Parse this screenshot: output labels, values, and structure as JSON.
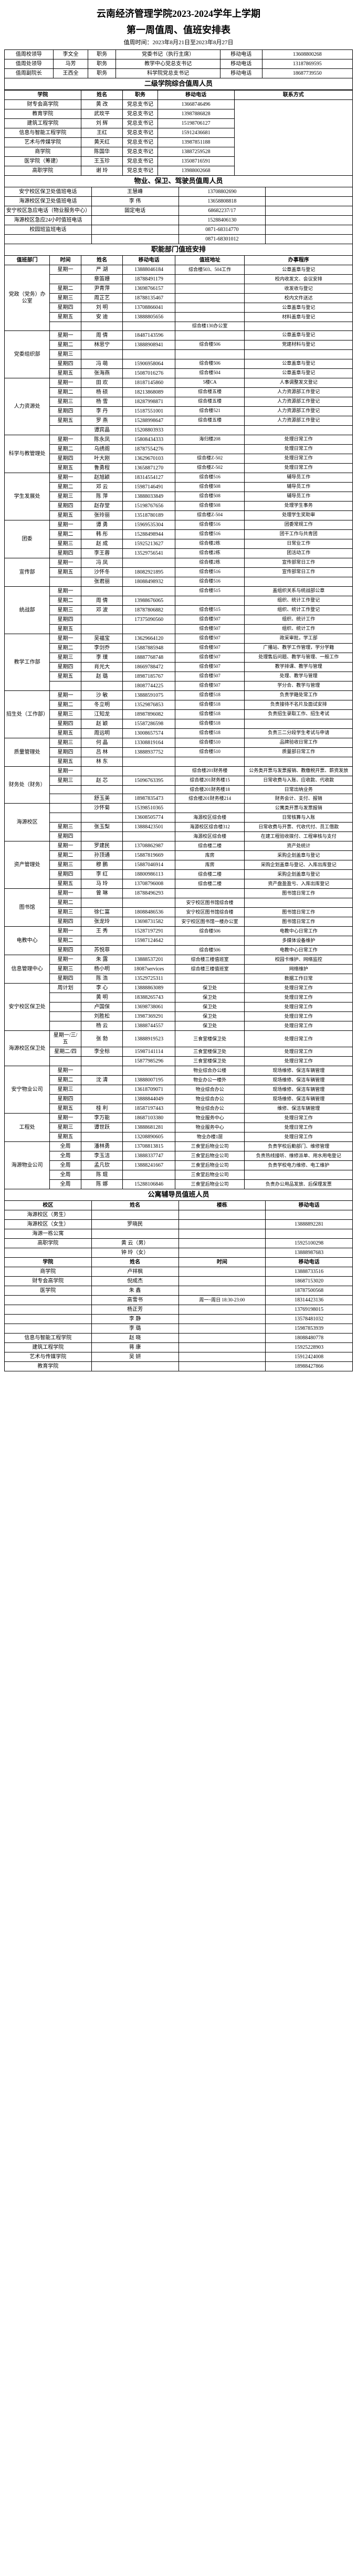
{
  "title_line1": "云南经济管理学院2023-2024学年上学期",
  "title_line2": "第一周值周、值班安排表",
  "date_range": "值周时间：2023年8月21日至2023年8月27日",
  "leaders": {
    "row1": {
      "role": "值周校领导",
      "name": "李文全",
      "postlbl": "职务",
      "post": "党委书记（执行主席）",
      "phonelbl": "移动电话",
      "phone": "13608800268"
    },
    "row2": {
      "role": "值周处领导",
      "name": "马芳",
      "postlbl": "职务",
      "post": "教学中心党总支书记",
      "phonelbl": "移动电话",
      "phone": "13187869595"
    },
    "row3": {
      "role": "值周副院长",
      "name": "王西全",
      "postlbl": "职务",
      "post": "科学院党总支书记",
      "phonelbl": "移动电话",
      "phone": "18687739550"
    }
  },
  "sec_title": "二级学院综合值周人员",
  "sec_hdr": {
    "c1": "学院",
    "c2": "姓名",
    "c3": "职务",
    "c4": "移动电话",
    "c5": "联系方式"
  },
  "sec_rows": [
    {
      "c1": "财专会高学院",
      "c2": "黄 改",
      "c3": "党总支书记",
      "c4": "13668746496"
    },
    {
      "c1": "教育学院",
      "c2": "武玫平",
      "c3": "党总支书记",
      "c4": "13987886828"
    },
    {
      "c1": "建筑工程学院",
      "c2": "刘 辉",
      "c3": "党总支书记",
      "c4": "15198706127"
    },
    {
      "c1": "信息与智能工程学院",
      "c2": "王红",
      "c3": "党总支书记",
      "c4": "15912436681"
    },
    {
      "c1": "艺术与传媒学院",
      "c2": "黄天红",
      "c3": "党总支书记",
      "c4": "13987851188"
    },
    {
      "c1": "商学院",
      "c3": "党总支书记",
      "c2": "陈国华",
      "c4": "13887259528"
    },
    {
      "c1": "医学院（筹建）",
      "c3": "党总支书记",
      "c2": "王玉珍",
      "c4": "13508716591"
    },
    {
      "c1": "高职学院",
      "c3": "党总支书记",
      "c2": "谢 玲",
      "c4": "13988002668"
    }
  ],
  "logistics_title": "物业、保卫、驾驶员值周人员",
  "logistics_rows": [
    {
      "c1": "安宁校区保卫处值班电话",
      "c3": "王慧峰",
      "c4": "13708802690"
    },
    {
      "c1": "海源校区保卫处值班电话",
      "c3": "李 伟",
      "c4": "13658808818"
    },
    {
      "c1": "安宁校区急应电话（物业服务中心）",
      "c3": "固定电话",
      "c4": "68682237/17"
    },
    {
      "c1": "海源校区急应24小时值班电话",
      "c3": "",
      "c4": "15288406130"
    },
    {
      "c1": "校园班监班电话",
      "c3": "",
      "c4": "0871-68314770"
    },
    {
      "c1": "",
      "c3": "",
      "c4": "0871-68301012"
    }
  ],
  "func_title": "职能部门值班安排",
  "func_hdr": {
    "c1": "值班部门",
    "c2": "时间",
    "c3": "姓名",
    "c4": "移动电话",
    "c5": "值班地址",
    "c6": "办事程序"
  },
  "func_rows": [
    {
      "dept": "党政（党务）办公室",
      "rows": [
        {
          "t": "星期一",
          "n": "严 湖",
          "p": "13888046184",
          "a": "综合楼503、504工作",
          "m": "公章盖章与登记"
        },
        {
          "t": "",
          "n": "章笛姗",
          "p": "18788491179",
          "a": "",
          "m": "校内收发文、会议安排"
        },
        {
          "t": "星期二",
          "n": "尹青萍",
          "p": "13698766157",
          "a": "",
          "m": "收发收与登记"
        },
        {
          "t": "星期三",
          "n": "周芷艺",
          "p": "18788135467",
          "a": "",
          "m": "校内文件送达"
        },
        {
          "t": "星期四",
          "n": "刘 明",
          "p": "13708866041",
          "a": "",
          "m": "公章盖章与登记"
        },
        {
          "t": "星期五",
          "n": "安 迪",
          "p": "13888805656",
          "a": "",
          "m": "材料盖章与登记"
        },
        {
          "t": "",
          "n": "",
          "p": "",
          "a": "综合楼130办公室",
          "m": ""
        }
      ]
    },
    {
      "dept": "党委组织部",
      "rows": [
        {
          "t": "星期一",
          "n": "周 倩",
          "p": "18487143596",
          "a": "",
          "m": "公章盖章与登记"
        },
        {
          "t": "星期二",
          "n": "林思宁",
          "p": "13888908941",
          "a": "综合楼506",
          "m": "党建材料与登记"
        },
        {
          "t": "星期三",
          "n": "",
          "p": "",
          "a": "",
          "m": ""
        },
        {
          "t": "星期四",
          "n": "冯 萌",
          "p": "15906958064",
          "a": "综合楼506",
          "m": "公章盖章与登记"
        },
        {
          "t": "星期五",
          "n": "张海燕",
          "p": "15087016276",
          "a": "综合楼504",
          "m": "公章盖章与登记"
        }
      ]
    },
    {
      "dept": "人力资源处",
      "rows": [
        {
          "t": "星期一",
          "n": "田 欢",
          "p": "18187145860",
          "a": "5楼CA",
          "m": "人事调整发文登记"
        },
        {
          "t": "星期二",
          "n": "杨 硕",
          "p": "18213868089",
          "a": "综合楼五楼",
          "m": "人力资源部工作登记"
        },
        {
          "t": "星期三",
          "n": "杨 雪",
          "p": "18287998871",
          "a": "综合楼五楼",
          "m": "人力资源部工作登记"
        },
        {
          "t": "星期四",
          "n": "李 丹",
          "p": "15187551001",
          "a": "综合楼521",
          "m": "人力资源部工作登记"
        },
        {
          "t": "星期五",
          "n": "罗 燕",
          "p": "15288998647",
          "a": "综合楼五楼",
          "m": "人力资源部工作登记"
        },
        {
          "t": "",
          "n": "谭宾晶",
          "p": "15208803933",
          "a": "",
          "m": ""
        }
      ]
    },
    {
      "dept": "科学与教管理处",
      "rows": [
        {
          "t": "星期一",
          "n": "陈永凤",
          "p": "15808434333",
          "a": "海归楼208",
          "m": "处理日常工作"
        },
        {
          "t": "星期二",
          "n": "乌绣阁",
          "p": "18787554276",
          "a": "",
          "m": "处理日常工作"
        },
        {
          "t": "星期四",
          "n": "叶大刚",
          "p": "13629670103",
          "a": "综合楼Z-502",
          "m": "处理日常工作"
        },
        {
          "t": "星期五",
          "n": "鲁勇程",
          "p": "13658871270",
          "a": "综合楼Z-502",
          "m": "处理日常工作"
        }
      ]
    },
    {
      "dept": "学生发展处",
      "rows": [
        {
          "t": "星期一",
          "n": "赵旭颖",
          "p": "18314554127",
          "a": "综合楼516",
          "m": "辅导员工作"
        },
        {
          "t": "星期二",
          "n": "邓 云",
          "p": "15987146491",
          "a": "综合楼508",
          "m": "辅导员工作"
        },
        {
          "t": "星期三",
          "n": "陈 萍",
          "p": "13888033849",
          "a": "综合楼508",
          "m": "辅导员工作"
        },
        {
          "t": "星期四",
          "n": "赵存堂",
          "p": "15198767656",
          "a": "综合楼508",
          "m": "处理学生事务"
        },
        {
          "t": "星期五",
          "n": "张玲丽",
          "p": "13518780189",
          "a": "综合楼Z-504",
          "m": "处理学生奖助审"
        }
      ]
    },
    {
      "dept": "团委",
      "rows": [
        {
          "t": "星期一",
          "n": "谭 勇",
          "p": "15969535304",
          "a": "综合楼516",
          "m": "团委常规工作"
        },
        {
          "t": "星期二",
          "n": "韩 彤",
          "p": "15288498944",
          "a": "综合楼516",
          "m": "团干工作与共青团"
        },
        {
          "t": "星期三",
          "n": "赵 成",
          "p": "15925213627",
          "a": "综合楼2栋",
          "m": "日常业工作"
        },
        {
          "t": "星期四",
          "n": "李王蓉",
          "p": "13529756541",
          "a": "综合楼2栋",
          "m": "团活动工作"
        }
      ]
    },
    {
      "dept": "宣传部",
      "rows": [
        {
          "t": "星期一",
          "n": "冯 凤",
          "p": "",
          "a": "综合楼2栋",
          "m": "宣传部常日工作"
        },
        {
          "t": "星期五",
          "n": "沙怀冬",
          "p": "18082921895",
          "a": "综合楼516",
          "m": "宣传部常日工作"
        },
        {
          "t": "",
          "n": "张君丽",
          "p": "18088498932",
          "a": "综合楼516",
          "m": ""
        }
      ]
    },
    {
      "dept": "统战部",
      "rows": [
        {
          "t": "星期一",
          "n": "",
          "p": "",
          "a": "综合楼515",
          "m": "盖组织关系与统战部公章"
        },
        {
          "t": "星期二",
          "n": "周 倩",
          "p": "13988676065",
          "a": "",
          "m": "组织、统计工作登记"
        },
        {
          "t": "星期三",
          "n": "邓 波",
          "p": "18787806882",
          "a": "综合楼515",
          "m": "组织、统计工作登记"
        },
        {
          "t": "星期四",
          "n": "",
          "p": "17375090560",
          "a": "综合楼507",
          "m": "组织、统计工作"
        },
        {
          "t": "星期五",
          "n": "",
          "p": "",
          "a": "综合楼507",
          "m": "组织、统计工作"
        }
      ]
    },
    {
      "dept": "教学工作部",
      "rows": [
        {
          "t": "星期一",
          "n": "吴福宝",
          "p": "13629664120",
          "a": "综合楼507",
          "m": "政采审批，学工部"
        },
        {
          "t": "星期二",
          "n": "李剑乔",
          "p": "15887885948",
          "a": "综合楼507",
          "m": "广播站、教学工作管理，学分学籍"
        },
        {
          "t": "星期三",
          "n": "李 璞",
          "p": "18887768748",
          "a": "综合楼507",
          "m": "处理售后问题、教学与管理、一般工作"
        },
        {
          "t": "星期四",
          "n": "肖光大",
          "p": "18669788472",
          "a": "综合楼507",
          "m": "教学排课、教学与管理"
        },
        {
          "t": "星期五",
          "n": "赵 璐",
          "p": "18987185767",
          "a": "综合楼507",
          "m": "处理、教学与管理"
        },
        {
          "t": "",
          "n": "",
          "p": "18087744225",
          "a": "综合楼507",
          "m": "学分合、教学与管理"
        }
      ]
    },
    {
      "dept": "招生处（工作部）",
      "rows": [
        {
          "t": "星期一",
          "n": "沙 敏",
          "p": "13888591075",
          "a": "综合楼518",
          "m": "负责学籍处常工作"
        },
        {
          "t": "星期二",
          "n": "冬立明",
          "p": "13529876853",
          "a": "综合楼518",
          "m": "负责接待不名片及面试安排"
        },
        {
          "t": "星期三",
          "n": "江知龙",
          "p": "18987896082",
          "a": "综合楼518",
          "m": "负责招生录取工作、招生考试"
        },
        {
          "t": "星期四",
          "n": "赵 颖",
          "p": "15587286598",
          "a": "综合楼518",
          "m": ""
        },
        {
          "t": "星期五",
          "n": "周远明",
          "p": "13008657574",
          "a": "综合楼518",
          "m": "负责三二分段学生考试与申请"
        }
      ]
    },
    {
      "dept": "质量管理处",
      "rows": [
        {
          "t": "星期三",
          "n": "何 晶",
          "p": "13308819164",
          "a": "综合楼510",
          "m": "品牌验收日常工作"
        },
        {
          "t": "星期四",
          "n": "吕 林",
          "p": "13888937752",
          "a": "综合楼510",
          "m": "质量部日常工作"
        },
        {
          "t": "星期五",
          "n": "林 东",
          "p": "",
          "a": "",
          "m": ""
        }
      ]
    },
    {
      "dept": "财务处（财务）",
      "rows": [
        {
          "t": "星期一",
          "n": "",
          "p": "",
          "a": "综合楼201财务楼",
          "m": "公务类开票与发票报销、教缴税开票、薪资发放"
        },
        {
          "t": "星期三",
          "n": "赵 芯",
          "p": "15096763395",
          "a": "综合楼201财务楼15",
          "m": "日常收费与入账、应收款、代收款"
        },
        {
          "t": "",
          "n": "",
          "p": "",
          "a": "综合楼201财务楼18",
          "m": "日常出纳业务"
        },
        {
          "t": "",
          "n": "舒玉美",
          "p": "18987835473",
          "a": "综合楼201财务楼214",
          "m": "财务会计、支付、报销"
        }
      ]
    },
    {
      "dept": "海源校区",
      "rows": [
        {
          "t": "",
          "n": "沙怀菊",
          "p": "15398510365",
          "a": "",
          "m": "公寓类开票与发票报销"
        },
        {
          "t": "",
          "n": "",
          "p": "13608505774",
          "a": "海源校区综合楼",
          "m": "日常核算与入账"
        },
        {
          "t": "星期三",
          "n": "张玉梨",
          "p": "13888423501",
          "a": "海源校区综合楼312",
          "m": "日常收费与开票、代收代付、员工借款"
        },
        {
          "t": "星期四",
          "n": "",
          "p": "",
          "a": "海源校区综合楼",
          "m": "在建工程验收拨付、工程审核与支付"
        }
      ]
    },
    {
      "dept": "资产管理处",
      "rows": [
        {
          "t": "星期一",
          "n": "罗建民",
          "p": "13708862987",
          "a": "综合楼二楼",
          "m": "资产处统计"
        },
        {
          "t": "星期二",
          "n": "孙顶通",
          "p": "15887819669",
          "a": "库房",
          "m": "采购企划盖章与登记"
        },
        {
          "t": "星期三",
          "n": "穆 鹏",
          "p": "15887046914",
          "a": "库房",
          "m": "采购企划盖章与登记、入库出库登记"
        },
        {
          "t": "星期四",
          "n": "李 红",
          "p": "18800986113",
          "a": "综合楼二楼",
          "m": "采购企划盖章与登记"
        },
        {
          "t": "星期五",
          "n": "马 玲",
          "p": "13708796008",
          "a": "综合楼二楼",
          "m": "资产盘盈盈亏、入库出库登记"
        }
      ]
    },
    {
      "dept": "图书馆",
      "rows": [
        {
          "t": "星期一",
          "n": "曾 琳",
          "p": "18788496293",
          "a": "",
          "m": "图书馆日常工作"
        },
        {
          "t": "星期二",
          "n": "",
          "p": "",
          "a": "安宁校区图书馆综合楼",
          "m": ""
        },
        {
          "t": "星期三",
          "n": "徐仁富",
          "p": "18088486536",
          "a": "安宁校区图书馆综合楼",
          "m": "图书馆日常工作"
        },
        {
          "t": "星期四",
          "n": "张龙玲",
          "p": "13698731582",
          "a": "安宁校区图书馆一楼办公室",
          "m": "图书馆日常工作"
        }
      ]
    },
    {
      "dept": "电教中心",
      "rows": [
        {
          "t": "星期一",
          "n": "王 秀",
          "p": "15287197291",
          "a": "综合楼506",
          "m": "电教中心日常工作"
        },
        {
          "t": "星期二",
          "n": "",
          "p": "15987124642",
          "a": "",
          "m": "多媒体设备维护"
        },
        {
          "t": "星期四",
          "n": "苏悦菲",
          "p": "",
          "a": "综合楼506",
          "m": "电教中心日常工作"
        }
      ]
    },
    {
      "dept": "信息管理中心",
      "rows": [
        {
          "t": "星期一",
          "n": "朱 露",
          "p": "13888537201",
          "a": "综合楼三楼值班室",
          "m": "校园卡维护、网络监控"
        },
        {
          "t": "星期三",
          "n": "杨小明",
          "p": "18087services",
          "a": "综合楼三楼值班室",
          "m": "网络维护"
        },
        {
          "t": "星期四",
          "n": "陈 浩",
          "p": "13529725311",
          "a": "",
          "m": "数据工作日常"
        }
      ]
    },
    {
      "dept": "安宁校区保卫处",
      "rows": [
        {
          "t": "周计划",
          "n": "李 心",
          "p": "13888863089",
          "a": "保卫处",
          "m": "处理日常工作"
        },
        {
          "t": "",
          "n": "黄 明",
          "p": "18388265743",
          "a": "保卫处",
          "m": "处理日常工作"
        },
        {
          "t": "",
          "n": "卢国保",
          "p": "13698738061",
          "a": "保卫处",
          "m": "处理日常工作"
        },
        {
          "t": "",
          "n": "刘胜松",
          "p": "13987369291",
          "a": "保卫处",
          "m": "处理日常工作"
        },
        {
          "t": "",
          "n": "杨 云",
          "p": "13888744557",
          "a": "保卫处",
          "m": "处理日常工作"
        }
      ]
    },
    {
      "dept": "海源校区保卫处",
      "rows": [
        {
          "t": "星期一/三/五",
          "n": "张 勃",
          "p": "13888919523",
          "a": "三食堂楼保卫处",
          "m": "处理日常工作"
        },
        {
          "t": "星期二/四",
          "n": "李全标",
          "p": "15987141114",
          "a": "三食堂楼保卫处",
          "m": "处理日常工作"
        },
        {
          "t": "",
          "n": "",
          "p": "15877985296",
          "a": "三食堂楼保卫处",
          "m": "处理日常工作"
        }
      ]
    },
    {
      "dept": "安宁物业公司",
      "rows": [
        {
          "t": "星期一",
          "n": "",
          "p": "",
          "a": "物业综合办公楼",
          "m": "现场维修、保洁车辆管理"
        },
        {
          "t": "星期二",
          "n": "沈 清",
          "p": "13888007195",
          "a": "物业办公一楼外",
          "m": "现场维修、保洁车辆管理"
        },
        {
          "t": "星期三",
          "n": "",
          "p": "13618709071",
          "a": "物业综合办公",
          "m": "现场维修、保洁车辆管理"
        },
        {
          "t": "星期四",
          "n": "",
          "p": "13888844049",
          "a": "物业综合办公",
          "m": "现场维修、保洁车辆管理"
        },
        {
          "t": "星期五",
          "n": "桂 利",
          "p": "18587197443",
          "a": "物业综合办公",
          "m": "维修、保洁车辆管理"
        }
      ]
    },
    {
      "dept": "工程处",
      "rows": [
        {
          "t": "星期一",
          "n": "李万能",
          "p": "18687103380",
          "a": "物业服务中心",
          "m": "处理日常工作"
        },
        {
          "t": "星期三",
          "n": "谭世跃",
          "p": "13888681281",
          "a": "物业服务中心",
          "m": "处理日常工作"
        },
        {
          "t": "星期五",
          "n": "",
          "p": "13208890605",
          "a": "物业办楼1层",
          "m": "处理日常工作"
        }
      ]
    },
    {
      "dept": "海源物业公司",
      "rows": [
        {
          "t": "全周",
          "n": "潘林勇",
          "p": "13708813815",
          "a": "三食堂后物业公司",
          "m": "负责学校后勤部门、维修管理"
        },
        {
          "t": "全周",
          "n": "李玉洁",
          "p": "13888337747",
          "a": "三食堂后物业公司",
          "m": "负责热线接听、维修派单、用水用电登记"
        },
        {
          "t": "全周",
          "n": "孟凡钦",
          "p": "13888241667",
          "a": "三食堂后物业公司",
          "m": "负责学校电力维修、电工维护"
        },
        {
          "t": "全周",
          "n": "陈 琨",
          "p": "",
          "a": "三食堂后物业公司",
          "m": ""
        },
        {
          "t": "全周",
          "n": "陈 娜",
          "p": "15288106846",
          "a": "三食堂后物业公司",
          "m": "负责办公用品发放、后保理发票"
        }
      ]
    }
  ],
  "dorm_title": "公寓辅导员值班人员",
  "dorm_hdr": {
    "c1": "校区",
    "c2": "姓名",
    "c3": "楼栋",
    "c4": "移动电话"
  },
  "dorm_rows": [
    {
      "c1": "海源校区（男生）",
      "c2": "",
      "c3": "",
      "c4": ""
    },
    {
      "c1": "海源校区（女生）",
      "c2": "罗晓民",
      "c3": "",
      "c4": "13888892281"
    },
    {
      "c1": "海源一栋公寓",
      "c2": "",
      "c3": "",
      "c4": ""
    },
    {
      "c1": "高职学院",
      "c2": "黄 云（男）",
      "c3": "",
      "c4": "15925100298"
    },
    {
      "c1": "",
      "c2": "钟 玲（女）",
      "c3": "",
      "c4": "13888987683"
    }
  ],
  "dorm2_hdr": {
    "c1": "学院",
    "c2": "姓名",
    "c3": "时间",
    "c4": "移动电话"
  },
  "dorm2_rows": [
    {
      "c1": "商学院",
      "c2": "卢祥枫",
      "c3": "",
      "c4": "13888733516"
    },
    {
      "c1": "财专会高学院",
      "c2": "倪成杰",
      "c3": "",
      "c4": "18687153020"
    },
    {
      "c1": "医学院",
      "c2": "朱 鑫",
      "c3": "",
      "c4": "18787500568"
    },
    {
      "c1": "",
      "c2": "高雪书",
      "c3": "周一~周日 18:30-23:00",
      "c4": "18314423136"
    },
    {
      "c1": "",
      "c2": "杨正芳",
      "c3": "",
      "c4": "13769198015"
    },
    {
      "c1": "",
      "c2": "李 静",
      "c3": "",
      "c4": "13578481032"
    },
    {
      "c1": "",
      "c2": "李 璐",
      "c3": "",
      "c4": "15987853939"
    },
    {
      "c1": "信息与智能工程学院",
      "c2": "赵 晓",
      "c3": "",
      "c4": "18088480778"
    },
    {
      "c1": "建筑工程学院",
      "c2": "蒋 康",
      "c3": "",
      "c4": "15925228903"
    },
    {
      "c1": "艺术与传媒学院",
      "c2": "吴 妍",
      "c3": "",
      "c4": "15912424008"
    },
    {
      "c1": "教育学院",
      "c2": "",
      "c3": "",
      "c4": "18988427866"
    }
  ]
}
